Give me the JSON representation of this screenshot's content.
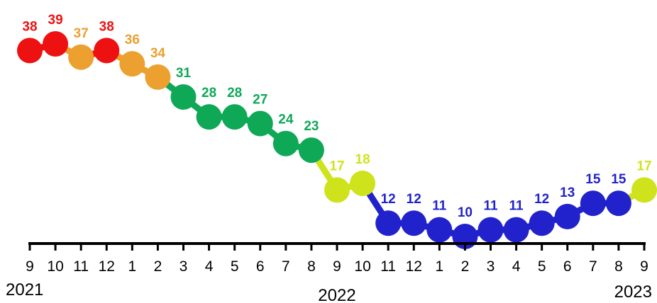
{
  "chart_data": {
    "type": "line",
    "x": [
      "2021-09",
      "2021-10",
      "2021-11",
      "2021-12",
      "2022-01",
      "2022-02",
      "2022-03",
      "2022-04",
      "2022-05",
      "2022-06",
      "2022-07",
      "2022-08",
      "2022-09",
      "2022-10",
      "2022-11",
      "2022-12",
      "2023-01",
      "2023-02",
      "2023-03",
      "2023-04",
      "2023-05",
      "2023-06",
      "2023-07",
      "2023-08",
      "2023-09"
    ],
    "tick_labels": [
      "9",
      "10",
      "11",
      "12",
      "1",
      "2",
      "3",
      "4",
      "5",
      "6",
      "7",
      "8",
      "9",
      "10",
      "11",
      "12",
      "1",
      "2",
      "3",
      "4",
      "5",
      "6",
      "7",
      "8",
      "9"
    ],
    "values": [
      38,
      39,
      37,
      38,
      36,
      34,
      31,
      28,
      28,
      27,
      24,
      23,
      17,
      18,
      12,
      12,
      11,
      10,
      11,
      11,
      12,
      13,
      15,
      15,
      17
    ],
    "point_colors": [
      "#ee1111",
      "#ee1111",
      "#eba030",
      "#ee1111",
      "#eba030",
      "#eba030",
      "#0fa857",
      "#0fa857",
      "#0fa857",
      "#0fa857",
      "#0fa857",
      "#0fa857",
      "#cfe31c",
      "#cfe31c",
      "#2222cc",
      "#2222cc",
      "#2222cc",
      "#2222cc",
      "#2222cc",
      "#2222cc",
      "#2222cc",
      "#2222cc",
      "#2222cc",
      "#2222cc",
      "#cfe31c"
    ],
    "year_labels": [
      {
        "text": "2021",
        "at_index": 0
      },
      {
        "text": "2022",
        "at_index": 12
      },
      {
        "text": "2023",
        "at_index": 24
      }
    ],
    "ylim": [
      10,
      39
    ],
    "grid": false,
    "legend": "none"
  }
}
